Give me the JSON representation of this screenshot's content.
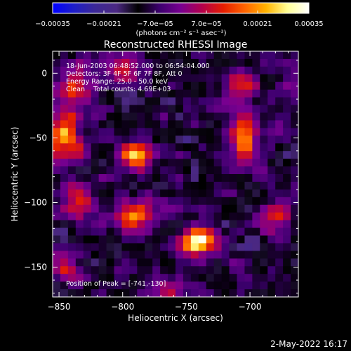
{
  "chart_data": {
    "type": "heatmap",
    "title": "Reconstructed RHESSI Image",
    "xlabel": "Heliocentric X (arcsec)",
    "ylabel": "Heliocentric Y (arcsec)",
    "xlim": [
      -855,
      -662
    ],
    "ylim": [
      -173,
      17
    ],
    "x_ticks": [
      -850,
      -800,
      -750,
      -700
    ],
    "x_tick_labels": [
      "−850",
      "−800",
      "−750",
      "−700"
    ],
    "y_ticks": [
      0,
      -50,
      -100,
      -150
    ],
    "y_tick_labels": [
      "0",
      "−50",
      "−100",
      "−150"
    ],
    "colorbar": {
      "range": [
        -0.00035,
        0.00035
      ],
      "ticks": [
        -0.00035,
        -0.00021,
        -7e-05,
        7e-05,
        0.00021,
        0.00035
      ],
      "tick_labels": [
        "−0.00035",
        "−0.00021",
        "−7.0e−05",
        "7.0e−05",
        "0.00021",
        "0.00035"
      ],
      "unit_label": "(photons cm⁻² s⁻¹ asec⁻²)"
    },
    "annotations": {
      "time_range": "18-Jun-2003 06:48:52.000 to 06:54:04.000",
      "detectors": "Detectors: 3F 4F 5F 6F 7F 8F, Att 0",
      "energy_range": "Energy Range: 25.0 - 50.0 keV",
      "clean": "Clean    Total counts: 4.69E+03",
      "peak": "Position of Peak = [-741,-130]"
    },
    "peak": {
      "x": -741,
      "y": -130
    },
    "sources": [
      {
        "x": -741,
        "y": -130,
        "sx": 9,
        "sy": 8,
        "amp": 1.0
      },
      {
        "x": -790,
        "y": -63,
        "sx": 9,
        "sy": 9,
        "amp": 0.75
      },
      {
        "x": -845,
        "y": -50,
        "sx": 10,
        "sy": 11,
        "amp": 0.7
      },
      {
        "x": -840,
        "y": -10,
        "sx": 10,
        "sy": 12,
        "amp": 0.55
      },
      {
        "x": -800,
        "y": 5,
        "sx": 9,
        "sy": 7,
        "amp": 0.5
      },
      {
        "x": -705,
        "y": -50,
        "sx": 7,
        "sy": 14,
        "amp": 0.6
      },
      {
        "x": -705,
        "y": -10,
        "sx": 9,
        "sy": 8,
        "amp": 0.5
      },
      {
        "x": -790,
        "y": -110,
        "sx": 12,
        "sy": 9,
        "amp": 0.55
      },
      {
        "x": -835,
        "y": -100,
        "sx": 10,
        "sy": 9,
        "amp": 0.5
      },
      {
        "x": -680,
        "y": -110,
        "sx": 9,
        "sy": 10,
        "amp": 0.45
      },
      {
        "x": -845,
        "y": -150,
        "sx": 8,
        "sy": 8,
        "amp": 0.35
      },
      {
        "x": -765,
        "y": -165,
        "sx": 8,
        "sy": 6,
        "amp": 0.3
      }
    ],
    "colors": {
      "cmap": [
        "#0000ff",
        "#1e1ec8",
        "#3c2896",
        "#4b2882",
        "#000000",
        "#3c006e",
        "#780090",
        "#b4004b",
        "#e61e00",
        "#ff6400",
        "#ffb400",
        "#ffff96",
        "#ffffff"
      ],
      "background": "#000000",
      "foreground": "#ffffff"
    }
  },
  "footer": {
    "date": "2-May-2022 16:17"
  }
}
